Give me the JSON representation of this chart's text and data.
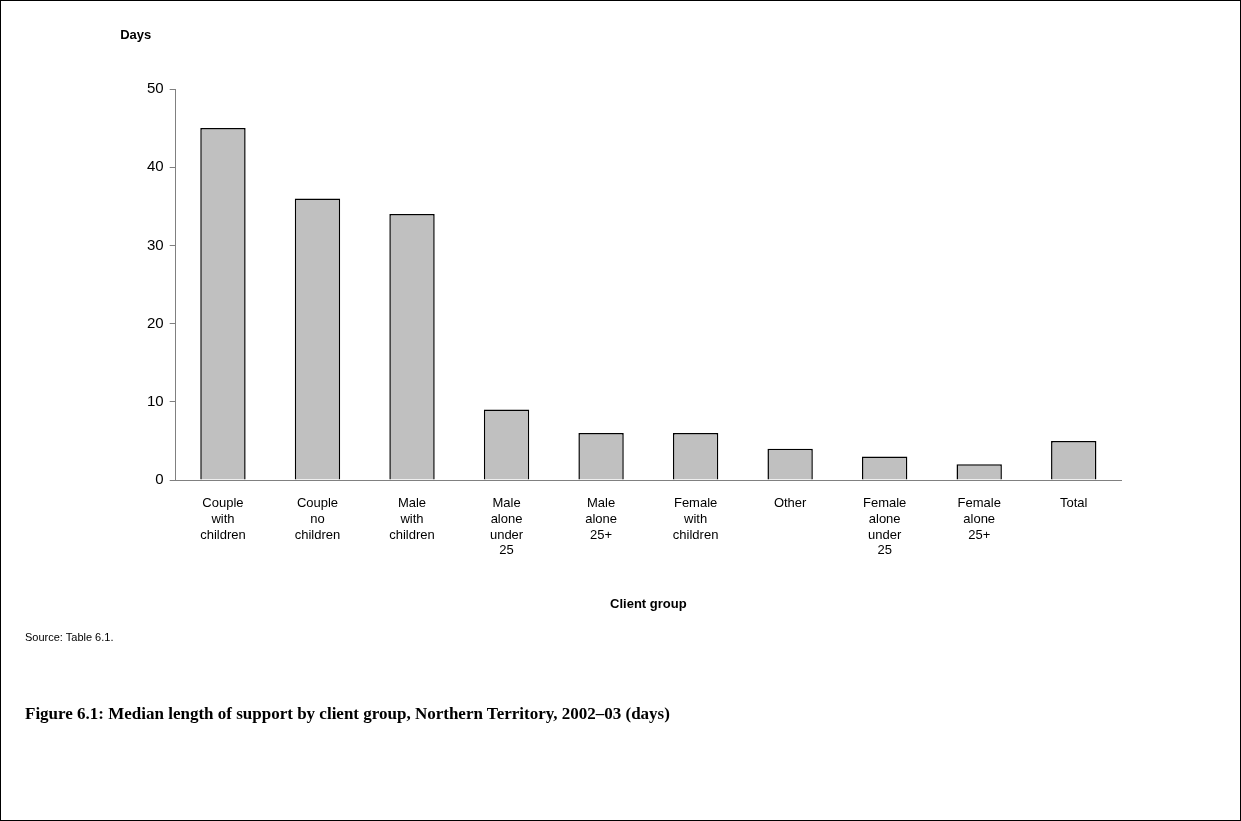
{
  "chart_data": {
    "type": "bar",
    "title": "Figure 6.1: Median length of support by client group, Northern Territory, 2002–03 (days)",
    "xlabel": "Client group",
    "ylabel": "Days",
    "categories": [
      "Couple with children",
      "Couple no children",
      "Male with children",
      "Male alone under 25",
      "Male alone 25+",
      "Female with children",
      "Other",
      "Female alone under 25",
      "Female alone 25+",
      "Total"
    ],
    "values": [
      45,
      36,
      34,
      9,
      6,
      6,
      4,
      3,
      2,
      5
    ],
    "color": "#c0c0c0",
    "ylim": [
      0,
      50
    ],
    "yticks": [
      0,
      10,
      20,
      30,
      40,
      50
    ],
    "grid": false,
    "legend": false,
    "annotations": [
      "Source: Table 6.1."
    ]
  }
}
